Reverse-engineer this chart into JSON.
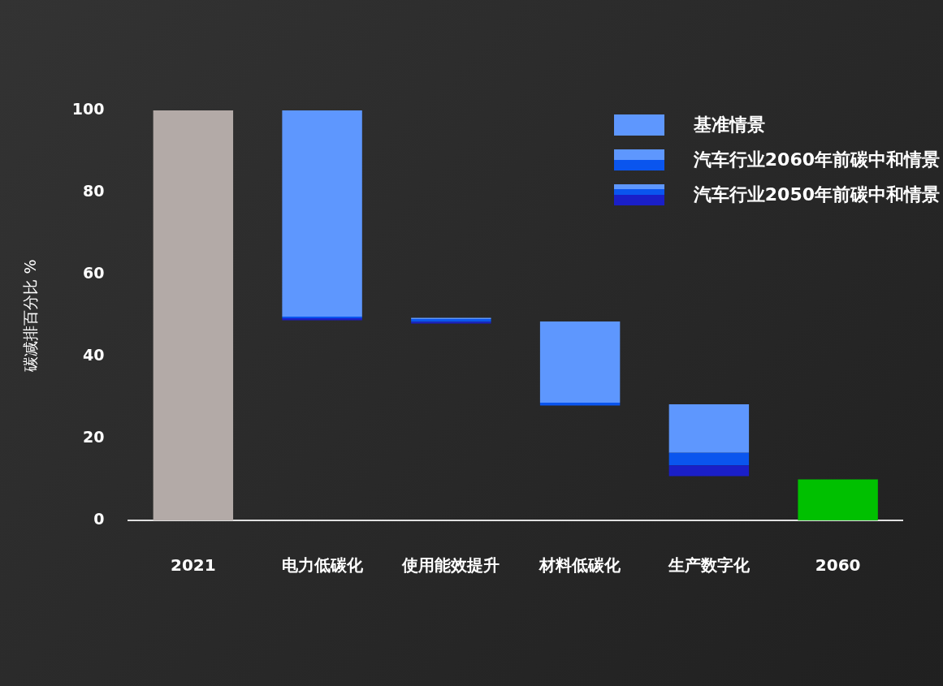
{
  "chart_data": {
    "type": "bar",
    "ylabel": "碳减排百分比 %",
    "categories": [
      "2021",
      "电力低碳化",
      "使用能效提升",
      "材料低碳化",
      "生产数字化",
      "2060"
    ],
    "series": [
      {
        "colors": [
          "#b3aaa7",
          "#b3aaa7",
          "#b3aaa7",
          "#b3aaa7",
          "#b3aaa7",
          "#00c000"
        ],
        "base": [
          0,
          null,
          null,
          null,
          null,
          0
        ],
        "values": [
          100,
          null,
          null,
          null,
          null,
          10
        ]
      },
      {
        "name": "汽车行业2050年前碳中和情景",
        "color": "#1a1fc8",
        "base": [
          null,
          48.8,
          48.0,
          null,
          10.8,
          null
        ],
        "values": [
          null,
          0.5,
          0.4,
          null,
          2.6,
          null
        ]
      },
      {
        "name": "汽车行业2060年前碳中和情景",
        "color": "#0a55ee",
        "base": [
          null,
          49.3,
          48.4,
          28.0,
          13.4,
          null
        ],
        "values": [
          null,
          0.4,
          0.7,
          0.7,
          3.1,
          null
        ]
      },
      {
        "name": "基准情景",
        "color": "#5e97fe",
        "base": [
          null,
          49.7,
          49.1,
          28.7,
          16.5,
          null
        ],
        "values": [
          null,
          50.3,
          0.3,
          19.8,
          11.8,
          null
        ]
      }
    ],
    "ylim": [
      0,
      100
    ],
    "yticks": [
      0,
      20,
      40,
      60,
      80,
      100
    ],
    "grid": false,
    "legend": "top right"
  }
}
